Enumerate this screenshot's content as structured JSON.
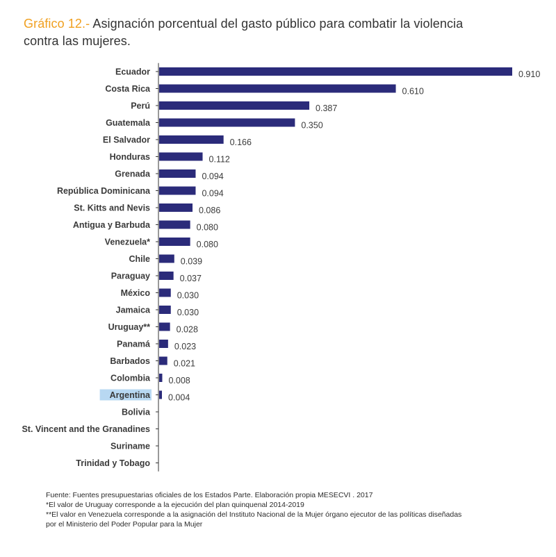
{
  "title": {
    "prefix": "Gráfico 12.-",
    "line1": " Asignación porcentual del gasto público para combatir la violencia",
    "line2": "contra las mujeres."
  },
  "chart_data": {
    "type": "bar",
    "orientation": "horizontal",
    "title": "Gráfico 12.- Asignación porcentual del gasto público para combatir la violencia contra las mujeres.",
    "categories": [
      "Ecuador",
      "Costa Rica",
      "Perú",
      "Guatemala",
      "El Salvador",
      "Honduras",
      "Grenada",
      "República Dominicana",
      "St. Kitts and Nevis",
      "Antigua y Barbuda",
      "Venezuela*",
      "Chile",
      "Paraguay",
      "México",
      "Jamaica",
      "Uruguay**",
      "Panamá",
      "Barbados",
      "Colombia",
      "Argentina",
      "Bolivia",
      "St. Vincent and the Granadines",
      "Suriname",
      "Trinidad y Tobago"
    ],
    "values": [
      0.91,
      0.61,
      0.387,
      0.35,
      0.166,
      0.112,
      0.094,
      0.094,
      0.086,
      0.08,
      0.08,
      0.039,
      0.037,
      0.03,
      0.03,
      0.028,
      0.023,
      0.021,
      0.008,
      0.004,
      null,
      null,
      null,
      null
    ],
    "value_labels": [
      "0.910",
      "0.610",
      "0.387",
      "0.350",
      "0.166",
      "0.112",
      "0.094",
      "0.094",
      "0.086",
      "0.080",
      "0.080",
      "0.039",
      "0.037",
      "0.030",
      "0.030",
      "0.028",
      "0.023",
      "0.021",
      "0.008",
      "0.004",
      "",
      "",
      "",
      ""
    ],
    "highlighted_category": "Argentina",
    "xlim": [
      0,
      0.91
    ],
    "bar_color": "#2b2b7a",
    "highlight_color": "#b8d8f2",
    "xlabel": "",
    "ylabel": ""
  },
  "notes": {
    "source": "Fuente: Fuentes presupuestarias oficiales de los Estados Parte. Elaboración propia MESECVI . 2017",
    "uruguay": "*El valor de Uruguay corresponde a la ejecución del plan quinquenal 2014-2019",
    "venezuela_line1": "**El valor en Venezuela corresponde a la asignación del Instituto Nacional de la Mujer órgano ejecutor de las políticas diseñadas",
    "venezuela_line2": "por el Ministerio del Poder Popular para la Mujer"
  }
}
